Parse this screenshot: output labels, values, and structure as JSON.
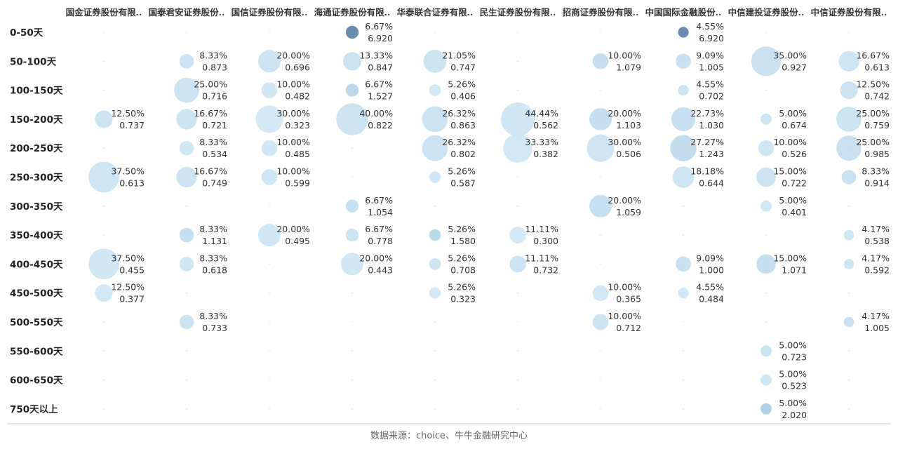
{
  "chart_data": {
    "type": "bubble_matrix",
    "columns": [
      "国金证券股份有限..",
      "国泰君安证券股份..",
      "国信证券股份有限..",
      "海通证券股份有限..",
      "华泰联合证券有限..",
      "民生证券股份有限..",
      "招商证券股份有限..",
      "中国国际金融股份..",
      "中信建投证券股份..",
      "中信证券股份有限.."
    ],
    "rows": [
      "0-50天",
      "50-100天",
      "100-150天",
      "150-200天",
      "200-250天",
      "250-300天",
      "300-350天",
      "350-400天",
      "400-450天",
      "450-500天",
      "500-550天",
      "550-600天",
      "600-650天",
      "750天以上"
    ],
    "bubbles": [
      {
        "row": 0,
        "col": 3,
        "pct": "6.67%",
        "value": "6.920"
      },
      {
        "row": 0,
        "col": 7,
        "pct": "4.55%",
        "value": "6.920"
      },
      {
        "row": 1,
        "col": 1,
        "pct": "8.33%",
        "value": "0.873"
      },
      {
        "row": 1,
        "col": 2,
        "pct": "20.00%",
        "value": "0.696"
      },
      {
        "row": 1,
        "col": 3,
        "pct": "13.33%",
        "value": "0.847"
      },
      {
        "row": 1,
        "col": 4,
        "pct": "21.05%",
        "value": "0.747"
      },
      {
        "row": 1,
        "col": 6,
        "pct": "10.00%",
        "value": "1.079"
      },
      {
        "row": 1,
        "col": 7,
        "pct": "9.09%",
        "value": "1.005"
      },
      {
        "row": 1,
        "col": 8,
        "pct": "35.00%",
        "value": "0.927"
      },
      {
        "row": 1,
        "col": 9,
        "pct": "16.67%",
        "value": "0.613"
      },
      {
        "row": 2,
        "col": 1,
        "pct": "25.00%",
        "value": "0.716"
      },
      {
        "row": 2,
        "col": 2,
        "pct": "10.00%",
        "value": "0.482"
      },
      {
        "row": 2,
        "col": 3,
        "pct": "6.67%",
        "value": "1.527"
      },
      {
        "row": 2,
        "col": 4,
        "pct": "5.26%",
        "value": "0.406"
      },
      {
        "row": 2,
        "col": 7,
        "pct": "4.55%",
        "value": "0.702"
      },
      {
        "row": 2,
        "col": 9,
        "pct": "12.50%",
        "value": "0.742"
      },
      {
        "row": 3,
        "col": 0,
        "pct": "12.50%",
        "value": "0.737"
      },
      {
        "row": 3,
        "col": 1,
        "pct": "16.67%",
        "value": "0.721"
      },
      {
        "row": 3,
        "col": 2,
        "pct": "30.00%",
        "value": "0.323"
      },
      {
        "row": 3,
        "col": 3,
        "pct": "40.00%",
        "value": "0.822"
      },
      {
        "row": 3,
        "col": 4,
        "pct": "26.32%",
        "value": "0.863"
      },
      {
        "row": 3,
        "col": 5,
        "pct": "44.44%",
        "value": "0.562"
      },
      {
        "row": 3,
        "col": 6,
        "pct": "20.00%",
        "value": "1.103"
      },
      {
        "row": 3,
        "col": 7,
        "pct": "22.73%",
        "value": "1.030"
      },
      {
        "row": 3,
        "col": 8,
        "pct": "5.00%",
        "value": "0.674"
      },
      {
        "row": 3,
        "col": 9,
        "pct": "25.00%",
        "value": "0.759"
      },
      {
        "row": 4,
        "col": 1,
        "pct": "8.33%",
        "value": "0.534"
      },
      {
        "row": 4,
        "col": 2,
        "pct": "10.00%",
        "value": "0.485"
      },
      {
        "row": 4,
        "col": 4,
        "pct": "26.32%",
        "value": "0.802"
      },
      {
        "row": 4,
        "col": 5,
        "pct": "33.33%",
        "value": "0.382"
      },
      {
        "row": 4,
        "col": 6,
        "pct": "30.00%",
        "value": "0.506"
      },
      {
        "row": 4,
        "col": 7,
        "pct": "27.27%",
        "value": "1.243"
      },
      {
        "row": 4,
        "col": 8,
        "pct": "10.00%",
        "value": "0.526"
      },
      {
        "row": 4,
        "col": 9,
        "pct": "25.00%",
        "value": "0.985"
      },
      {
        "row": 5,
        "col": 0,
        "pct": "37.50%",
        "value": "0.613"
      },
      {
        "row": 5,
        "col": 1,
        "pct": "16.67%",
        "value": "0.749"
      },
      {
        "row": 5,
        "col": 2,
        "pct": "10.00%",
        "value": "0.599"
      },
      {
        "row": 5,
        "col": 4,
        "pct": "5.26%",
        "value": "0.587"
      },
      {
        "row": 5,
        "col": 7,
        "pct": "18.18%",
        "value": "0.644"
      },
      {
        "row": 5,
        "col": 8,
        "pct": "15.00%",
        "value": "0.722"
      },
      {
        "row": 5,
        "col": 9,
        "pct": "8.33%",
        "value": "0.914"
      },
      {
        "row": 6,
        "col": 3,
        "pct": "6.67%",
        "value": "1.054"
      },
      {
        "row": 6,
        "col": 6,
        "pct": "20.00%",
        "value": "1.059"
      },
      {
        "row": 6,
        "col": 8,
        "pct": "5.00%",
        "value": "0.401"
      },
      {
        "row": 7,
        "col": 1,
        "pct": "8.33%",
        "value": "1.131"
      },
      {
        "row": 7,
        "col": 2,
        "pct": "20.00%",
        "value": "0.495"
      },
      {
        "row": 7,
        "col": 3,
        "pct": "6.67%",
        "value": "0.778"
      },
      {
        "row": 7,
        "col": 4,
        "pct": "5.26%",
        "value": "1.580"
      },
      {
        "row": 7,
        "col": 5,
        "pct": "11.11%",
        "value": "0.300"
      },
      {
        "row": 7,
        "col": 9,
        "pct": "4.17%",
        "value": "0.538"
      },
      {
        "row": 8,
        "col": 0,
        "pct": "37.50%",
        "value": "0.455"
      },
      {
        "row": 8,
        "col": 1,
        "pct": "8.33%",
        "value": "0.618"
      },
      {
        "row": 8,
        "col": 3,
        "pct": "20.00%",
        "value": "0.443"
      },
      {
        "row": 8,
        "col": 4,
        "pct": "5.26%",
        "value": "0.708"
      },
      {
        "row": 8,
        "col": 5,
        "pct": "11.11%",
        "value": "0.732"
      },
      {
        "row": 8,
        "col": 7,
        "pct": "9.09%",
        "value": "1.000"
      },
      {
        "row": 8,
        "col": 8,
        "pct": "15.00%",
        "value": "1.071"
      },
      {
        "row": 8,
        "col": 9,
        "pct": "4.17%",
        "value": "0.592"
      },
      {
        "row": 9,
        "col": 0,
        "pct": "12.50%",
        "value": "0.377"
      },
      {
        "row": 9,
        "col": 4,
        "pct": "5.26%",
        "value": "0.323"
      },
      {
        "row": 9,
        "col": 6,
        "pct": "10.00%",
        "value": "0.365"
      },
      {
        "row": 9,
        "col": 7,
        "pct": "4.55%",
        "value": "0.484"
      },
      {
        "row": 10,
        "col": 1,
        "pct": "8.33%",
        "value": "0.733"
      },
      {
        "row": 10,
        "col": 6,
        "pct": "10.00%",
        "value": "0.712"
      },
      {
        "row": 10,
        "col": 9,
        "pct": "4.17%",
        "value": "1.005"
      },
      {
        "row": 11,
        "col": 8,
        "pct": "5.00%",
        "value": "0.723"
      },
      {
        "row": 12,
        "col": 8,
        "pct": "5.00%",
        "value": "0.523"
      },
      {
        "row": 13,
        "col": 8,
        "pct": "5.00%",
        "value": "2.020"
      }
    ],
    "color_scale": {
      "low": "#cfe6f4",
      "mid": "#a9cde6",
      "high": "#5b7fa3"
    }
  },
  "source": "数据来源：choice、牛牛金融研究中心"
}
